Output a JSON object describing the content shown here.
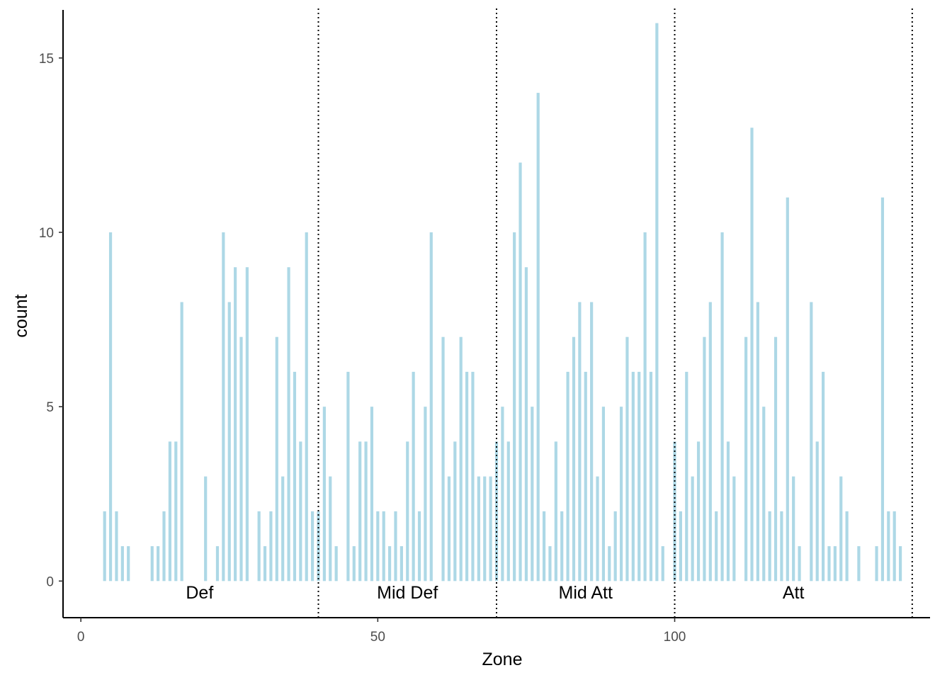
{
  "chart_data": {
    "type": "bar",
    "xlabel": "Zone",
    "ylabel": "count",
    "xlim": [
      -3,
      143
    ],
    "ylim": [
      -1.05,
      16.5
    ],
    "x_ticks": [
      0,
      50,
      100
    ],
    "y_ticks": [
      0,
      5,
      10,
      15
    ],
    "grid": false,
    "bar_color": "#ADD8E6",
    "zone_dividers": [
      40,
      70,
      100,
      140
    ],
    "zone_labels": [
      {
        "label": "Def",
        "x": 20
      },
      {
        "label": "Mid Def",
        "x": 55
      },
      {
        "label": "Mid Att",
        "x": 85
      },
      {
        "label": "Att",
        "x": 120
      }
    ],
    "x": [
      4,
      5,
      6,
      7,
      8,
      12,
      13,
      14,
      15,
      16,
      17,
      21,
      23,
      24,
      25,
      26,
      27,
      28,
      30,
      31,
      32,
      33,
      34,
      35,
      36,
      37,
      38,
      39,
      40,
      41,
      42,
      43,
      45,
      46,
      47,
      48,
      49,
      50,
      51,
      52,
      53,
      54,
      55,
      56,
      57,
      58,
      59,
      61,
      62,
      63,
      64,
      65,
      66,
      67,
      68,
      69,
      70,
      71,
      72,
      73,
      74,
      75,
      76,
      77,
      78,
      79,
      80,
      81,
      82,
      83,
      84,
      85,
      86,
      87,
      88,
      89,
      90,
      91,
      92,
      93,
      94,
      95,
      96,
      97,
      98,
      100,
      101,
      102,
      103,
      104,
      105,
      106,
      107,
      108,
      109,
      110,
      112,
      113,
      114,
      115,
      116,
      117,
      118,
      119,
      120,
      121,
      123,
      124,
      125,
      126,
      127,
      128,
      129,
      131,
      134,
      135,
      136,
      137,
      138
    ],
    "values": [
      2,
      10,
      2,
      1,
      1,
      1,
      1,
      2,
      4,
      4,
      8,
      3,
      1,
      10,
      8,
      9,
      7,
      9,
      2,
      1,
      2,
      7,
      3,
      9,
      6,
      4,
      10,
      2,
      2,
      5,
      3,
      1,
      6,
      1,
      4,
      4,
      5,
      2,
      2,
      1,
      2,
      1,
      4,
      6,
      2,
      5,
      10,
      7,
      3,
      4,
      7,
      6,
      6,
      3,
      3,
      3,
      4,
      5,
      4,
      10,
      12,
      9,
      5,
      14,
      2,
      1,
      4,
      2,
      6,
      7,
      8,
      6,
      8,
      3,
      5,
      1,
      2,
      5,
      7,
      6,
      6,
      10,
      6,
      16,
      1,
      4,
      2,
      6,
      3,
      4,
      7,
      8,
      2,
      10,
      4,
      3,
      7,
      13,
      8,
      5,
      2,
      7,
      2,
      11,
      3,
      1,
      8,
      4,
      6,
      1,
      1,
      3,
      2,
      1,
      1,
      11,
      2,
      2,
      1
    ]
  }
}
